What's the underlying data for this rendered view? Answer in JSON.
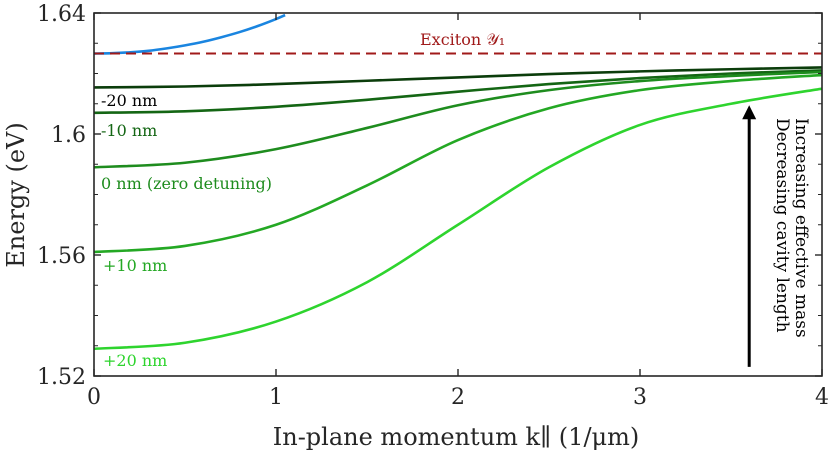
{
  "chart_data": {
    "type": "line",
    "xlabel": "In-plane momentum k∥ (1/μm)",
    "ylabel": "Energy (eV)",
    "xlim": [
      0,
      4
    ],
    "ylim": [
      1.52,
      1.64
    ],
    "x_ticks": [
      "0",
      "1",
      "2",
      "3",
      "4"
    ],
    "y_ticks": [
      "1.52",
      "1.56",
      "1.6",
      "1.64"
    ],
    "grid": false,
    "series": [
      {
        "name": "-20 nm",
        "color": "#0b3d0b",
        "x": [
          0,
          0.5,
          1,
          1.5,
          2,
          2.5,
          3,
          3.5,
          4
        ],
        "y": [
          1.6154,
          1.6157,
          1.6165,
          1.6176,
          1.6187,
          1.6198,
          1.6207,
          1.6214,
          1.622
        ]
      },
      {
        "name": "-10 nm",
        "color": "#146614",
        "x": [
          0,
          0.5,
          1,
          1.5,
          2,
          2.5,
          3,
          3.5,
          4
        ],
        "y": [
          1.607,
          1.6075,
          1.609,
          1.6113,
          1.614,
          1.6165,
          1.6185,
          1.62,
          1.621
        ]
      },
      {
        "name": "0 nm (zero detuning)",
        "color": "#1e8c1e",
        "x": [
          0,
          0.5,
          1,
          1.5,
          2,
          2.5,
          3,
          3.5,
          4
        ],
        "y": [
          1.589,
          1.5905,
          1.595,
          1.602,
          1.6095,
          1.6145,
          1.6175,
          1.6192,
          1.6205
        ]
      },
      {
        "name": "+10 nm",
        "color": "#24a824",
        "x": [
          0,
          0.5,
          1,
          1.5,
          2,
          2.5,
          3,
          3.5,
          4
        ],
        "y": [
          1.561,
          1.563,
          1.57,
          1.583,
          1.598,
          1.6085,
          1.6145,
          1.6175,
          1.6195
        ]
      },
      {
        "name": "+20 nm",
        "color": "#2ed42e",
        "x": [
          0,
          0.5,
          1,
          1.5,
          2,
          2.5,
          3,
          3.5,
          4
        ],
        "y": [
          1.529,
          1.531,
          1.538,
          1.551,
          1.57,
          1.589,
          1.603,
          1.61,
          1.615
        ]
      },
      {
        "name": "",
        "color": "#1a85e0",
        "x": [
          0,
          0.1,
          0.2,
          0.3,
          0.4,
          0.5,
          0.6,
          0.7,
          0.8,
          0.9,
          1.0,
          1.05
        ],
        "y": [
          1.6266,
          1.6267,
          1.627,
          1.6275,
          1.6283,
          1.6293,
          1.6305,
          1.632,
          1.6337,
          1.6357,
          1.638,
          1.6393
        ]
      }
    ],
    "reference_line": {
      "label": "Exciton 𝒴₁",
      "y": 1.6266,
      "color": "#a01a1a",
      "style": "dashed"
    },
    "arrow": {
      "x": 3.6,
      "y_start": 1.523,
      "y_end": 1.6095
    },
    "arrow_text": [
      "Increasing effective mass",
      "Decreasing cavity length"
    ]
  }
}
